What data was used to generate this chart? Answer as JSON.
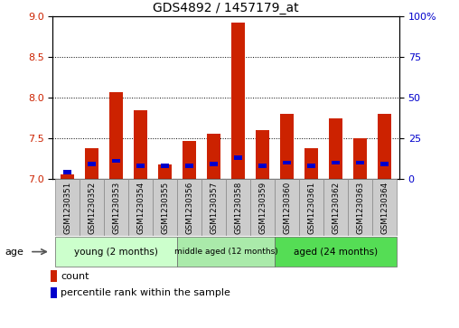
{
  "title": "GDS4892 / 1457179_at",
  "samples": [
    "GSM1230351",
    "GSM1230352",
    "GSM1230353",
    "GSM1230354",
    "GSM1230355",
    "GSM1230356",
    "GSM1230357",
    "GSM1230358",
    "GSM1230359",
    "GSM1230360",
    "GSM1230361",
    "GSM1230362",
    "GSM1230363",
    "GSM1230364"
  ],
  "count_values": [
    7.05,
    7.38,
    8.07,
    7.84,
    7.18,
    7.47,
    7.55,
    8.92,
    7.6,
    7.8,
    7.38,
    7.74,
    7.5,
    7.8
  ],
  "percentile_values": [
    7.08,
    7.18,
    7.22,
    7.16,
    7.16,
    7.16,
    7.18,
    7.26,
    7.16,
    7.2,
    7.16,
    7.2,
    7.2,
    7.18
  ],
  "ymin": 7.0,
  "ymax": 9.0,
  "yticks": [
    7.0,
    7.5,
    8.0,
    8.5,
    9.0
  ],
  "right_yticks": [
    0,
    25,
    50,
    75,
    100
  ],
  "right_ytick_pos": [
    7.0,
    7.5,
    8.0,
    8.5,
    9.0
  ],
  "bar_color": "#cc2200",
  "percentile_color": "#0000cc",
  "bar_width": 0.55,
  "pct_bar_width": 0.35,
  "pct_bar_height": 0.05,
  "groups": [
    {
      "label": "young (2 months)",
      "indices": [
        0,
        1,
        2,
        3,
        4
      ],
      "color": "#ccffcc"
    },
    {
      "label": "middle aged (12 months)",
      "indices": [
        5,
        6,
        7,
        8
      ],
      "color": "#aaeaaa"
    },
    {
      "label": "aged (24 months)",
      "indices": [
        9,
        10,
        11,
        12,
        13
      ],
      "color": "#55dd55"
    }
  ],
  "age_label": "age",
  "legend_count_label": "count",
  "legend_percentile_label": "percentile rank within the sample",
  "grid_color": "#000000",
  "sample_box_color": "#cccccc",
  "plot_bg": "#ffffff",
  "axes_label_color_left": "#cc2200",
  "axes_label_color_right": "#0000cc"
}
